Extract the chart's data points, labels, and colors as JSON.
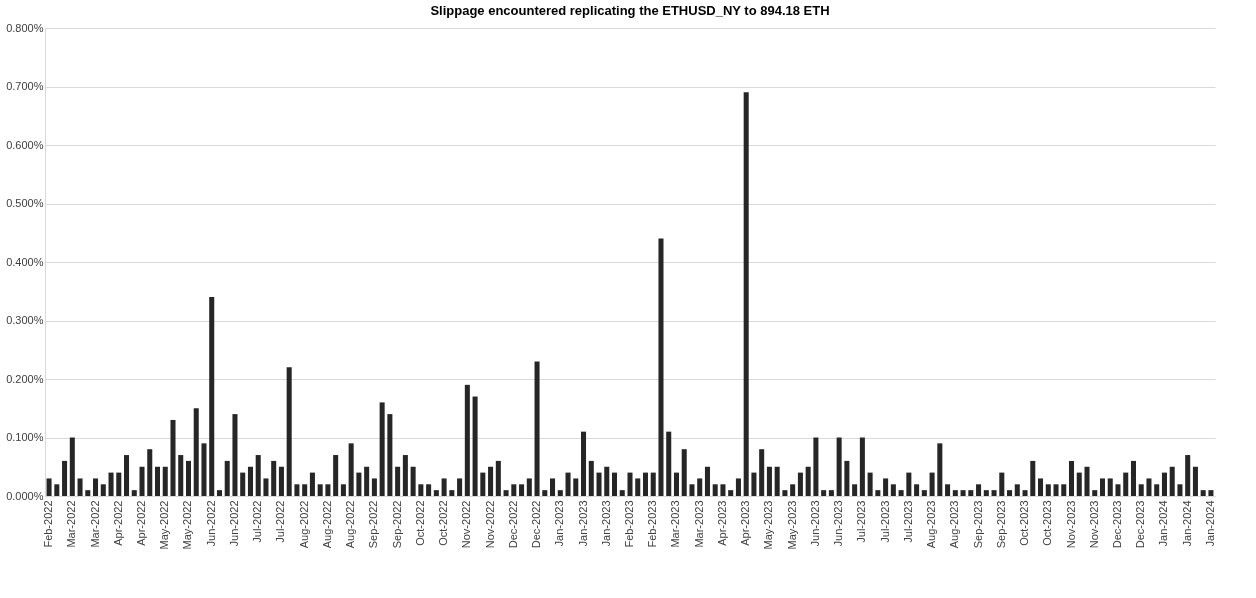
{
  "chart_data": {
    "type": "bar",
    "title": "Slippage encountered replicating the ETHUSD_NY to 894.18 ETH",
    "categories": [
      "Feb-2022",
      null,
      null,
      "Mar-2022",
      null,
      null,
      "Mar-2022",
      null,
      null,
      "Apr-2022",
      null,
      null,
      "Apr-2022",
      null,
      null,
      "May-2022",
      null,
      null,
      "May-2022",
      null,
      null,
      "Jun-2022",
      null,
      null,
      "Jun-2022",
      null,
      null,
      "Jul-2022",
      null,
      null,
      "Jul-2022",
      null,
      null,
      "Aug-2022",
      null,
      null,
      "Aug-2022",
      null,
      null,
      "Aug-2022",
      null,
      null,
      "Sep-2022",
      null,
      null,
      "Sep-2022",
      null,
      null,
      "Oct-2022",
      null,
      null,
      "Oct-2022",
      null,
      null,
      "Nov-2022",
      null,
      null,
      "Nov-2022",
      null,
      null,
      "Dec-2022",
      null,
      null,
      "Dec-2022",
      null,
      null,
      "Jan-2023",
      null,
      null,
      "Jan-2023",
      null,
      null,
      "Jan-2023",
      null,
      null,
      "Feb-2023",
      null,
      null,
      "Feb-2023",
      null,
      null,
      "Mar-2023",
      null,
      null,
      "Mar-2023",
      null,
      null,
      "Apr-2023",
      null,
      null,
      "Apr-2023",
      null,
      null,
      "May-2023",
      null,
      null,
      "May-2023",
      null,
      null,
      "Jun-2023",
      null,
      null,
      "Jun-2023",
      null,
      null,
      "Jul-2023",
      null,
      null,
      "Jul-2023",
      null,
      null,
      "Jul-2023",
      null,
      null,
      "Aug-2023",
      null,
      null,
      "Aug-2023",
      null,
      null,
      "Sep-2023",
      null,
      null,
      "Sep-2023",
      null,
      null,
      "Oct-2023",
      null,
      null,
      "Oct-2023",
      null,
      null,
      "Nov-2023",
      null,
      null,
      "Nov-2023",
      null,
      null,
      "Dec-2023",
      null,
      null,
      "Dec-2023",
      null,
      null,
      "Jan-2024",
      null,
      null,
      "Jan-2024",
      null,
      null,
      "Jan-2024"
    ],
    "values": [
      0.03,
      0.02,
      0.06,
      0.1,
      0.03,
      0.01,
      0.03,
      0.02,
      0.04,
      0.04,
      0.07,
      0.01,
      0.05,
      0.08,
      0.05,
      0.05,
      0.13,
      0.07,
      0.06,
      0.15,
      0.09,
      0.34,
      0.01,
      0.06,
      0.14,
      0.04,
      0.05,
      0.07,
      0.03,
      0.06,
      0.05,
      0.22,
      0.02,
      0.02,
      0.04,
      0.02,
      0.02,
      0.07,
      0.02,
      0.09,
      0.04,
      0.05,
      0.03,
      0.16,
      0.14,
      0.05,
      0.07,
      0.05,
      0.02,
      0.02,
      0.01,
      0.03,
      0.01,
      0.03,
      0.19,
      0.17,
      0.04,
      0.05,
      0.06,
      0.01,
      0.02,
      0.02,
      0.03,
      0.23,
      0.01,
      0.03,
      0.01,
      0.04,
      0.03,
      0.11,
      0.06,
      0.04,
      0.05,
      0.04,
      0.01,
      0.04,
      0.03,
      0.04,
      0.04,
      0.44,
      0.11,
      0.04,
      0.08,
      0.02,
      0.03,
      0.05,
      0.02,
      0.02,
      0.01,
      0.03,
      0.69,
      0.04,
      0.08,
      0.05,
      0.05,
      0.01,
      0.02,
      0.04,
      0.05,
      0.1,
      0.01,
      0.01,
      0.1,
      0.06,
      0.02,
      0.1,
      0.04,
      0.01,
      0.03,
      0.02,
      0.01,
      0.04,
      0.02,
      0.01,
      0.04,
      0.09,
      0.02,
      0.01,
      0.01,
      0.01,
      0.02,
      0.01,
      0.01,
      0.04,
      0.01,
      0.02,
      0.01,
      0.06,
      0.03,
      0.02,
      0.02,
      0.02,
      0.06,
      0.04,
      0.05,
      0.01,
      0.03,
      0.03,
      0.02,
      0.04,
      0.06,
      0.02,
      0.03,
      0.02,
      0.04,
      0.05,
      0.02,
      0.07,
      0.05,
      0.01,
      0.01
    ],
    "color": "#262626",
    "ylim": [
      0,
      0.8
    ],
    "yticks": [
      {
        "value": 0,
        "label": "0.000%"
      },
      {
        "value": 0.1,
        "label": "0.100%"
      },
      {
        "value": 0.2,
        "label": "0.200%"
      },
      {
        "value": 0.3,
        "label": "0.300%"
      },
      {
        "value": 0.4,
        "label": "0.400%"
      },
      {
        "value": 0.5,
        "label": "0.500%"
      },
      {
        "value": 0.6,
        "label": "0.600%"
      },
      {
        "value": 0.7,
        "label": "0.700%"
      },
      {
        "value": 0.8,
        "label": "0.800%"
      }
    ],
    "grid": "y"
  }
}
